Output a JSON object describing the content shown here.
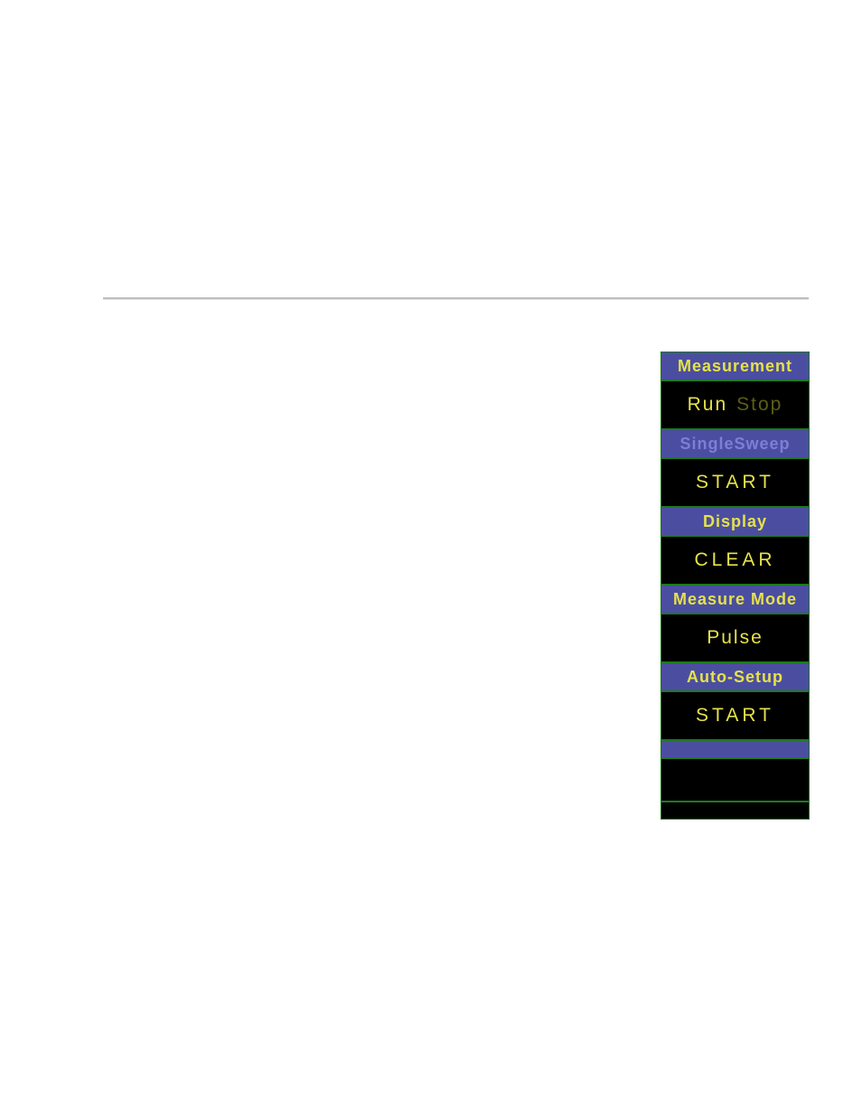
{
  "colors": {
    "panel_bg": "#000000",
    "header_bg": "#4b4ea0",
    "text_active": "#e5e24a",
    "text_dim_header": "#7c7fd6",
    "text_inactive": "#5e5e14",
    "border": "#1e7a1e",
    "page_bg": "#ffffff",
    "rule": "#bdbdbd"
  },
  "menu": {
    "items": [
      {
        "label": "Measurement",
        "value_a": "Run",
        "value_b": "Stop",
        "active": "a",
        "type": "toggle"
      },
      {
        "label": "SingleSweep",
        "value": "START",
        "type": "action",
        "dim_header": true
      },
      {
        "label": "Display",
        "value": "CLEAR",
        "type": "action"
      },
      {
        "label": "Measure Mode",
        "value": "Pulse",
        "type": "select"
      },
      {
        "label": "Auto-Setup",
        "value": "START",
        "type": "action"
      }
    ]
  }
}
